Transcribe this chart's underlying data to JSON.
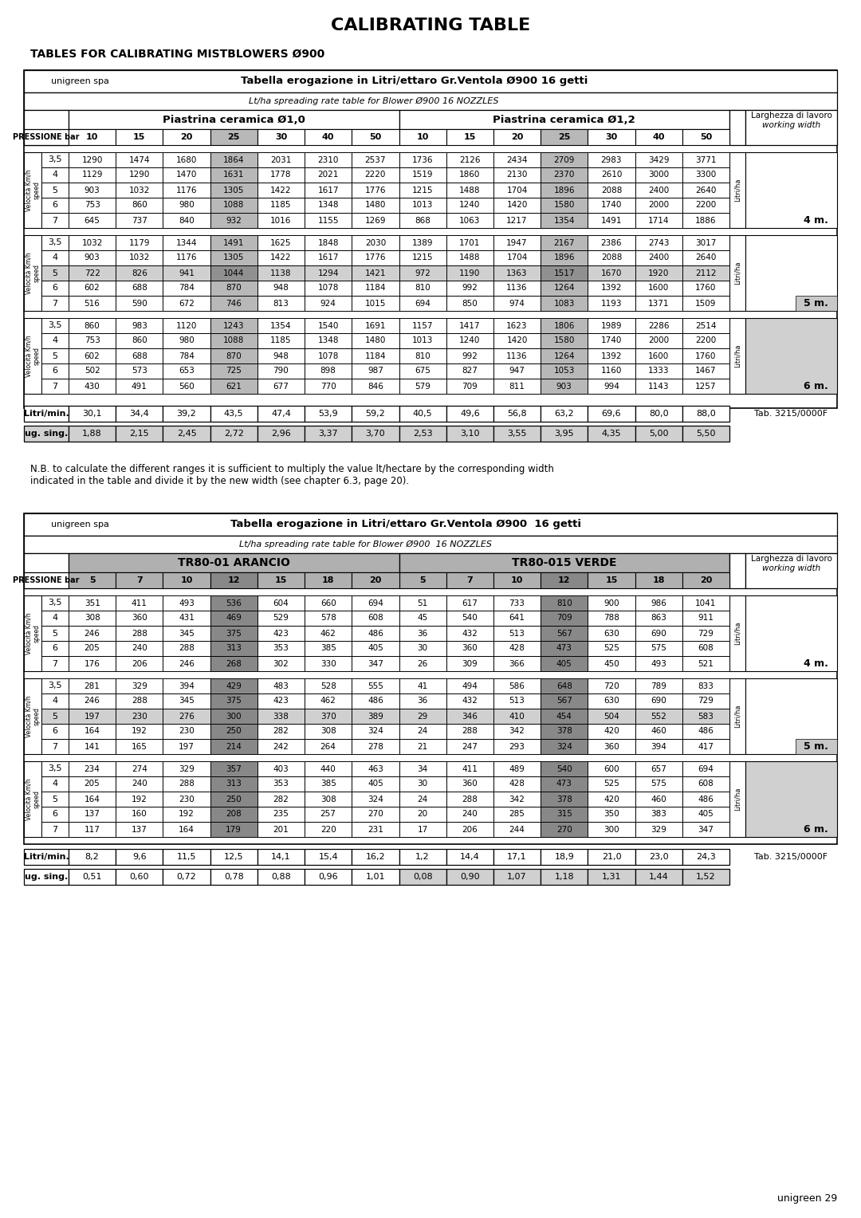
{
  "title": "CALIBRATING TABLE",
  "subtitle": "TABLES FOR CALIBRATING MISTBLOWERS Ø900",
  "page_label": "unigreen 29",
  "table1": {
    "header_title": "Tabella erogazione in Litri/ettaro Gr.Ventola Ø900 16 getti",
    "header_sub": "Lt/ha spreading rate table for Blower Ø900 16 NOZZLES",
    "col_group1": "Piastrina ceramica Ø1,0",
    "col_group2": "Piastrina ceramica Ø1,2",
    "pressione": "PRESSIONE bar",
    "pressure_cols": [
      "10",
      "15",
      "20",
      "25",
      "30",
      "40",
      "50",
      "10",
      "15",
      "20",
      "25",
      "30",
      "40",
      "50"
    ],
    "litri_ha": "Litri/ha",
    "right_header_line1": "Larghezza di lavoro",
    "right_header_line2": "working width",
    "blocks": [
      {
        "width_label": "4 m.",
        "highlight_row_idx": null,
        "rows": [
          {
            "speed": "3,5",
            "vals": [
              1290,
              1474,
              1680,
              1864,
              2031,
              2310,
              2537,
              1736,
              2126,
              2434,
              2709,
              2983,
              3429,
              3771
            ]
          },
          {
            "speed": "4",
            "vals": [
              1129,
              1290,
              1470,
              1631,
              1778,
              2021,
              2220,
              1519,
              1860,
              2130,
              2370,
              2610,
              3000,
              3300
            ]
          },
          {
            "speed": "5",
            "vals": [
              903,
              1032,
              1176,
              1305,
              1422,
              1617,
              1776,
              1215,
              1488,
              1704,
              1896,
              2088,
              2400,
              2640
            ]
          },
          {
            "speed": "6",
            "vals": [
              753,
              860,
              980,
              1088,
              1185,
              1348,
              1480,
              1013,
              1240,
              1420,
              1580,
              1740,
              2000,
              2200
            ]
          },
          {
            "speed": "7",
            "vals": [
              645,
              737,
              840,
              932,
              1016,
              1155,
              1269,
              868,
              1063,
              1217,
              1354,
              1491,
              1714,
              1886
            ]
          }
        ]
      },
      {
        "width_label": "5 m.",
        "highlight_row_idx": 2,
        "rows": [
          {
            "speed": "3,5",
            "vals": [
              1032,
              1179,
              1344,
              1491,
              1625,
              1848,
              2030,
              1389,
              1701,
              1947,
              2167,
              2386,
              2743,
              3017
            ]
          },
          {
            "speed": "4",
            "vals": [
              903,
              1032,
              1176,
              1305,
              1422,
              1617,
              1776,
              1215,
              1488,
              1704,
              1896,
              2088,
              2400,
              2640
            ]
          },
          {
            "speed": "5",
            "vals": [
              722,
              826,
              941,
              1044,
              1138,
              1294,
              1421,
              972,
              1190,
              1363,
              1517,
              1670,
              1920,
              2112
            ]
          },
          {
            "speed": "6",
            "vals": [
              602,
              688,
              784,
              870,
              948,
              1078,
              1184,
              810,
              992,
              1136,
              1264,
              1392,
              1600,
              1760
            ]
          },
          {
            "speed": "7",
            "vals": [
              516,
              590,
              672,
              746,
              813,
              924,
              1015,
              694,
              850,
              974,
              1083,
              1193,
              1371,
              1509
            ]
          }
        ]
      },
      {
        "width_label": "6 m.",
        "highlight_row_idx": null,
        "rows": [
          {
            "speed": "3,5",
            "vals": [
              860,
              983,
              1120,
              1243,
              1354,
              1540,
              1691,
              1157,
              1417,
              1623,
              1806,
              1989,
              2286,
              2514
            ]
          },
          {
            "speed": "4",
            "vals": [
              753,
              860,
              980,
              1088,
              1185,
              1348,
              1480,
              1013,
              1240,
              1420,
              1580,
              1740,
              2000,
              2200
            ]
          },
          {
            "speed": "5",
            "vals": [
              602,
              688,
              784,
              870,
              948,
              1078,
              1184,
              810,
              992,
              1136,
              1264,
              1392,
              1600,
              1760
            ]
          },
          {
            "speed": "6",
            "vals": [
              502,
              573,
              653,
              725,
              790,
              898,
              987,
              675,
              827,
              947,
              1053,
              1160,
              1333,
              1467
            ]
          },
          {
            "speed": "7",
            "vals": [
              430,
              491,
              560,
              621,
              677,
              770,
              846,
              579,
              709,
              811,
              903,
              994,
              1143,
              1257
            ]
          }
        ]
      }
    ],
    "litri_min_label": "Litri/min.",
    "litri_min": [
      "30,1",
      "34,4",
      "39,2",
      "43,5",
      "47,4",
      "53,9",
      "59,2",
      "40,5",
      "49,6",
      "56,8",
      "63,2",
      "69,6",
      "80,0",
      "88,0"
    ],
    "ug_sing_label": "ug. sing.",
    "ug_sing": [
      "1,88",
      "2,15",
      "2,45",
      "2,72",
      "2,96",
      "3,37",
      "3,70",
      "2,53",
      "3,10",
      "3,55",
      "3,95",
      "4,35",
      "5,00",
      "5,50"
    ],
    "tab_ref": "Tab. 3215/0000F"
  },
  "note": "N.B. to calculate the different ranges it is sufficient to multiply the value lt/hectare by the corresponding width\nindicated in the table and divide it by the new width (see chapter 6.3, page 20).",
  "table2": {
    "header_title": "Tabella erogazione in Litri/ettaro Gr.Ventola Ø900  16 getti",
    "header_sub": "Lt/ha spreading rate table for Blower Ø900  16 NOZZLES",
    "col_group1": "TR80-01 ARANCIO",
    "col_group2": "TR80-015 VERDE",
    "pressione": "PRESSIONE bar",
    "pressure_cols1": [
      "5",
      "7",
      "10",
      "12",
      "15",
      "18",
      "20"
    ],
    "pressure_cols2": [
      "5",
      "7",
      "10",
      "12",
      "15",
      "18",
      "20"
    ],
    "litri_ha": "Litri/ha",
    "right_header_line1": "Larghezza di lavoro",
    "right_header_line2": "working width",
    "blocks": [
      {
        "width_label": "4 m.",
        "highlight_row_idx": null,
        "rows": [
          {
            "speed": "3,5",
            "vals1": [
              351,
              411,
              493,
              536,
              604,
              660,
              694
            ],
            "vals2": [
              51,
              617,
              733,
              810,
              900,
              986,
              1041
            ]
          },
          {
            "speed": "4",
            "vals1": [
              308,
              360,
              431,
              469,
              529,
              578,
              608
            ],
            "vals2": [
              45,
              540,
              641,
              709,
              788,
              863,
              911
            ]
          },
          {
            "speed": "5",
            "vals1": [
              246,
              288,
              345,
              375,
              423,
              462,
              486
            ],
            "vals2": [
              36,
              432,
              513,
              567,
              630,
              690,
              729
            ]
          },
          {
            "speed": "6",
            "vals1": [
              205,
              240,
              288,
              313,
              353,
              385,
              405
            ],
            "vals2": [
              30,
              360,
              428,
              473,
              525,
              575,
              608
            ]
          },
          {
            "speed": "7",
            "vals1": [
              176,
              206,
              246,
              268,
              302,
              330,
              347
            ],
            "vals2": [
              26,
              309,
              366,
              405,
              450,
              493,
              521
            ]
          }
        ]
      },
      {
        "width_label": "5 m.",
        "highlight_row_idx": 2,
        "rows": [
          {
            "speed": "3,5",
            "vals1": [
              281,
              329,
              394,
              429,
              483,
              528,
              555
            ],
            "vals2": [
              41,
              494,
              586,
              648,
              720,
              789,
              833
            ]
          },
          {
            "speed": "4",
            "vals1": [
              246,
              288,
              345,
              375,
              423,
              462,
              486
            ],
            "vals2": [
              36,
              432,
              513,
              567,
              630,
              690,
              729
            ]
          },
          {
            "speed": "5",
            "vals1": [
              197,
              230,
              276,
              300,
              338,
              370,
              389
            ],
            "vals2": [
              29,
              346,
              410,
              454,
              504,
              552,
              583
            ]
          },
          {
            "speed": "6",
            "vals1": [
              164,
              192,
              230,
              250,
              282,
              308,
              324
            ],
            "vals2": [
              24,
              288,
              342,
              378,
              420,
              460,
              486
            ]
          },
          {
            "speed": "7",
            "vals1": [
              141,
              165,
              197,
              214,
              242,
              264,
              278
            ],
            "vals2": [
              21,
              247,
              293,
              324,
              360,
              394,
              417
            ]
          }
        ]
      },
      {
        "width_label": "6 m.",
        "highlight_row_idx": null,
        "rows": [
          {
            "speed": "3,5",
            "vals1": [
              234,
              274,
              329,
              357,
              403,
              440,
              463
            ],
            "vals2": [
              34,
              411,
              489,
              540,
              600,
              657,
              694
            ]
          },
          {
            "speed": "4",
            "vals1": [
              205,
              240,
              288,
              313,
              353,
              385,
              405
            ],
            "vals2": [
              30,
              360,
              428,
              473,
              525,
              575,
              608
            ]
          },
          {
            "speed": "5",
            "vals1": [
              164,
              192,
              230,
              250,
              282,
              308,
              324
            ],
            "vals2": [
              24,
              288,
              342,
              378,
              420,
              460,
              486
            ]
          },
          {
            "speed": "6",
            "vals1": [
              137,
              160,
              192,
              208,
              235,
              257,
              270
            ],
            "vals2": [
              20,
              240,
              285,
              315,
              350,
              383,
              405
            ]
          },
          {
            "speed": "7",
            "vals1": [
              117,
              137,
              164,
              179,
              201,
              220,
              231
            ],
            "vals2": [
              17,
              206,
              244,
              270,
              300,
              329,
              347
            ]
          }
        ]
      }
    ],
    "litri_min_label": "Litri/min.",
    "litri_min": [
      "8,2",
      "9,6",
      "11,5",
      "12,5",
      "14,1",
      "15,4",
      "16,2",
      "1,2",
      "14,4",
      "17,1",
      "18,9",
      "21,0",
      "23,0",
      "24,3"
    ],
    "ug_sing_label": "ug. sing.",
    "ug_sing": [
      "0,51",
      "0,60",
      "0,72",
      "0,78",
      "0,88",
      "0,96",
      "1,01",
      "0,08",
      "0,90",
      "1,07",
      "1,18",
      "1,31",
      "1,44",
      "1,52"
    ],
    "tab_ref": "Tab. 3215/0000F"
  }
}
